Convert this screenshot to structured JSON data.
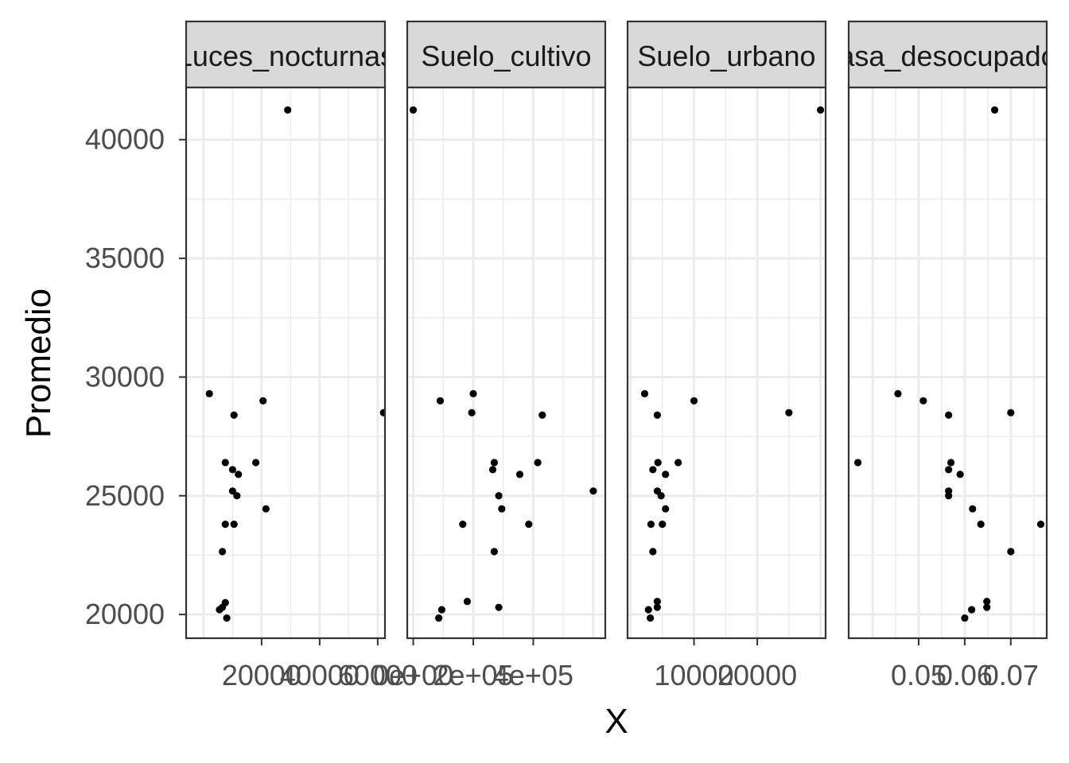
{
  "chart_data": {
    "type": "scatter",
    "xlabel": "X",
    "ylabel": "Promedio",
    "ylim": [
      19000,
      42200
    ],
    "yticks": [
      20000,
      25000,
      30000,
      35000,
      40000
    ],
    "ytick_labels": [
      "20000",
      "25000",
      "30000",
      "35000",
      "40000"
    ],
    "grid": true,
    "facets": [
      {
        "strip": "Luces_nocturnas",
        "xlim": [
          -6000,
          62500
        ],
        "xticks": [
          20000,
          40000,
          60000
        ],
        "xtick_labels": [
          "20000",
          "40000",
          "60000"
        ],
        "points": [
          {
            "x": 2000,
            "y": 29300
          },
          {
            "x": 7500,
            "y": 26400
          },
          {
            "x": 10500,
            "y": 28400
          },
          {
            "x": 10000,
            "y": 26100
          },
          {
            "x": 12000,
            "y": 25900
          },
          {
            "x": 10000,
            "y": 25200
          },
          {
            "x": 11500,
            "y": 25000
          },
          {
            "x": 7500,
            "y": 23800
          },
          {
            "x": 10500,
            "y": 23800
          },
          {
            "x": 6500,
            "y": 22650
          },
          {
            "x": 7500,
            "y": 20500
          },
          {
            "x": 6500,
            "y": 20300
          },
          {
            "x": 5500,
            "y": 20200
          },
          {
            "x": 8000,
            "y": 19850
          },
          {
            "x": 18000,
            "y": 26400
          },
          {
            "x": 20500,
            "y": 29000
          },
          {
            "x": 21500,
            "y": 24450
          },
          {
            "x": 29000,
            "y": 41250
          },
          {
            "x": 62000,
            "y": 28500
          }
        ]
      },
      {
        "strip": "Suelo_cultivo",
        "xlim": [
          -20000,
          640000
        ],
        "xticks": [
          0,
          200000,
          400000
        ],
        "xtick_labels": [
          "0e+00",
          "2e+05",
          "4e+05"
        ],
        "points": [
          {
            "x": 0,
            "y": 41250
          },
          {
            "x": 90000,
            "y": 29000
          },
          {
            "x": 200000,
            "y": 29300
          },
          {
            "x": 195000,
            "y": 28500
          },
          {
            "x": 430000,
            "y": 28400
          },
          {
            "x": 270000,
            "y": 26400
          },
          {
            "x": 415000,
            "y": 26400
          },
          {
            "x": 265000,
            "y": 26100
          },
          {
            "x": 355000,
            "y": 25900
          },
          {
            "x": 600000,
            "y": 25200
          },
          {
            "x": 285000,
            "y": 25000
          },
          {
            "x": 295000,
            "y": 24450
          },
          {
            "x": 165000,
            "y": 23800
          },
          {
            "x": 385000,
            "y": 23800
          },
          {
            "x": 270000,
            "y": 22650
          },
          {
            "x": 180000,
            "y": 20550
          },
          {
            "x": 285000,
            "y": 20300
          },
          {
            "x": 95000,
            "y": 20200
          },
          {
            "x": 85000,
            "y": 19850
          }
        ]
      },
      {
        "strip": "Suelo_urbano",
        "xlim": [
          -500,
          30800
        ],
        "xticks": [
          10000,
          20000
        ],
        "xtick_labels": [
          "10000",
          "20000"
        ],
        "points": [
          {
            "x": 2200,
            "y": 29300
          },
          {
            "x": 10000,
            "y": 29000
          },
          {
            "x": 4200,
            "y": 28400
          },
          {
            "x": 25000,
            "y": 28500
          },
          {
            "x": 30000,
            "y": 41250
          },
          {
            "x": 4300,
            "y": 26400
          },
          {
            "x": 7500,
            "y": 26400
          },
          {
            "x": 3500,
            "y": 26100
          },
          {
            "x": 5500,
            "y": 25900
          },
          {
            "x": 4200,
            "y": 25200
          },
          {
            "x": 4800,
            "y": 25000
          },
          {
            "x": 5500,
            "y": 24450
          },
          {
            "x": 3200,
            "y": 23800
          },
          {
            "x": 5000,
            "y": 23800
          },
          {
            "x": 3500,
            "y": 22650
          },
          {
            "x": 4200,
            "y": 20550
          },
          {
            "x": 4200,
            "y": 20300
          },
          {
            "x": 2800,
            "y": 20200
          },
          {
            "x": 3100,
            "y": 19850
          }
        ]
      },
      {
        "strip": "Tasa_desocupados",
        "xlim": [
          0.0348,
          0.0778
        ],
        "xticks": [
          0.05,
          0.06,
          0.07
        ],
        "xtick_labels": [
          "0.05",
          "0.06",
          "0.07"
        ],
        "points": [
          {
            "x": 0.0368,
            "y": 26400
          },
          {
            "x": 0.0455,
            "y": 29300
          },
          {
            "x": 0.051,
            "y": 29000
          },
          {
            "x": 0.0565,
            "y": 28400
          },
          {
            "x": 0.0665,
            "y": 41250
          },
          {
            "x": 0.07,
            "y": 28500
          },
          {
            "x": 0.057,
            "y": 26400
          },
          {
            "x": 0.0565,
            "y": 26100
          },
          {
            "x": 0.059,
            "y": 25900
          },
          {
            "x": 0.0565,
            "y": 25200
          },
          {
            "x": 0.0565,
            "y": 25000
          },
          {
            "x": 0.0617,
            "y": 24450
          },
          {
            "x": 0.0635,
            "y": 23800
          },
          {
            "x": 0.0765,
            "y": 23800
          },
          {
            "x": 0.07,
            "y": 22650
          },
          {
            "x": 0.0648,
            "y": 20550
          },
          {
            "x": 0.0648,
            "y": 20300
          },
          {
            "x": 0.0615,
            "y": 20200
          },
          {
            "x": 0.06,
            "y": 19850
          }
        ]
      }
    ]
  }
}
